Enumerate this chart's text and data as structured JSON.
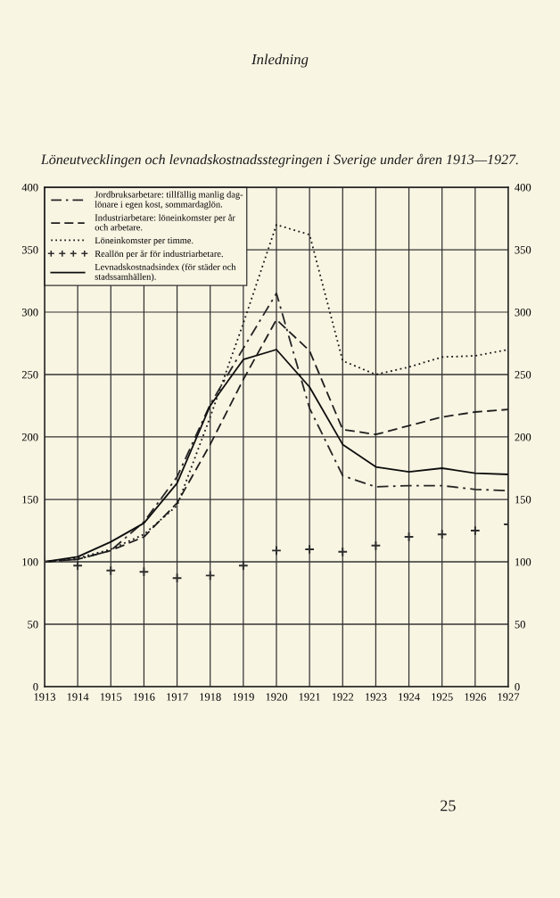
{
  "chart_data": {
    "type": "line",
    "title": "Löneutvecklingen och levnadskostnadsstegringen i Sverige under åren 1913—1927.",
    "annotations": [
      "Inledning",
      "25"
    ],
    "x": [
      1913,
      1914,
      1915,
      1916,
      1917,
      1918,
      1919,
      1920,
      1921,
      1922,
      1923,
      1924,
      1925,
      1926,
      1927
    ],
    "series": [
      {
        "name": "Jordbruksarbetare: tillfällig manlig dag-\nlönare i egen kost, sommardaglön.",
        "color": "#262626",
        "line_style": "dashdot",
        "values": [
          100,
          102,
          109,
          132,
          168,
          226,
          271,
          315,
          223,
          169,
          160,
          161,
          161,
          158,
          157
        ]
      },
      {
        "name": "Industriarbetare: löneinkomster per år\noch arbetare.",
        "color": "#1e1e1e",
        "line_style": "dashed",
        "values": [
          100,
          102,
          109,
          120,
          147,
          194,
          246,
          294,
          269,
          206,
          202,
          209,
          216,
          220,
          222
        ]
      },
      {
        "name": "Löneinkomster per timme.",
        "color": "#161616",
        "line_style": "dotted",
        "values": [
          100,
          103,
          110,
          122,
          145,
          216,
          291,
          370,
          362,
          261,
          250,
          256,
          264,
          265,
          270
        ]
      },
      {
        "name": "Reallön per år för industriarbetare.",
        "type": "scatter",
        "color": "#2e2e2e",
        "marker": "cross",
        "values": [
          100,
          97,
          93,
          92,
          87,
          89,
          97,
          109,
          110,
          108,
          113,
          120,
          122,
          125,
          130
        ]
      },
      {
        "name": "Levnadskostnadsindex (för städer och\nstadssamhällen).",
        "color": "#0e0e0e",
        "line_style": "solid",
        "values": [
          100,
          104,
          116,
          131,
          163,
          225,
          262,
          270,
          240,
          194,
          176,
          172,
          175,
          171,
          170
        ]
      }
    ],
    "xlim": [
      1913,
      1927
    ],
    "xticks": [
      1913,
      1914,
      1915,
      1916,
      1917,
      1918,
      1919,
      1920,
      1921,
      1922,
      1923,
      1924,
      1925,
      1926,
      1927
    ],
    "ylim": [
      0,
      400
    ],
    "yticks": [
      0,
      50,
      100,
      150,
      200,
      250,
      300,
      350,
      400
    ],
    "y2lim": [
      0,
      400
    ],
    "y2ticks": [
      0,
      50,
      100,
      150,
      200,
      250,
      300,
      350,
      400
    ],
    "grid": true,
    "legend": "top left"
  }
}
